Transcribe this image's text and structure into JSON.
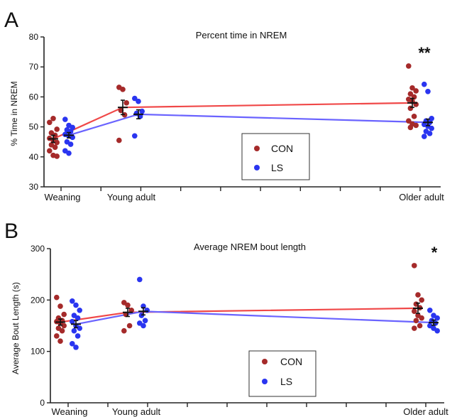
{
  "chart_data": [
    {
      "type": "scatter",
      "panel_label": "A",
      "title": "Percent time in NREM",
      "ylabel": "% Time in NREM",
      "xlabel": "",
      "categories": [
        "Weaning",
        "Young adult",
        "Older adult"
      ],
      "category_positions": [
        0,
        1,
        4.5
      ],
      "ylim": [
        30,
        80
      ],
      "yticks": [
        30,
        40,
        50,
        60,
        70,
        80
      ],
      "x_axis_ticks": [
        0,
        0.5,
        1,
        1.5,
        2,
        2.5,
        3,
        3.5,
        4,
        4.5
      ],
      "significance": "**",
      "significance_category": "Older adult",
      "legend": {
        "placement": "center-bottom",
        "entries": [
          "CON",
          "LS"
        ]
      },
      "series": [
        {
          "name": "CON",
          "color": "#a52a2a",
          "line_color": "#f04848",
          "mean": [
            46.0,
            56.5,
            58.0
          ],
          "sem": [
            1.2,
            2.4,
            1.5
          ],
          "points": [
            [
              51.5,
              52.8,
              49.2,
              48.0,
              47.2,
              46.2,
              45.5,
              44.8,
              44.0,
              43.2,
              42.0,
              40.5,
              40.2
            ],
            [
              63.2,
              62.5,
              58.0,
              55.5,
              54.0,
              45.5
            ],
            [
              70.3,
              63.0,
              62.0,
              61.0,
              60.0,
              59.2,
              58.5,
              57.5,
              56.2,
              53.5,
              52.0,
              51.0,
              50.5,
              49.8
            ]
          ]
        },
        {
          "name": "LS",
          "color": "#2a35f0",
          "line_color": "#6a63ff",
          "mean": [
            47.2,
            54.2,
            51.5
          ],
          "sem": [
            0.9,
            1.5,
            1.1
          ],
          "points": [
            [
              52.5,
              50.5,
              49.8,
              49.0,
              48.5,
              47.5,
              47.0,
              46.5,
              45.0,
              44.2,
              42.0,
              41.2
            ],
            [
              59.5,
              58.5,
              55.2,
              54.5,
              53.5,
              47.0
            ],
            [
              64.2,
              61.8,
              52.8,
              52.0,
              51.5,
              50.8,
              50.2,
              49.5,
              48.5,
              47.8,
              46.8
            ]
          ]
        }
      ]
    },
    {
      "type": "scatter",
      "panel_label": "B",
      "title": "Average NREM bout length",
      "ylabel": "Average Bout Length (s)",
      "xlabel": "",
      "categories": [
        "Weaning",
        "Young adult",
        "Older adult"
      ],
      "category_positions": [
        0,
        1,
        4.5
      ],
      "ylim": [
        0,
        300
      ],
      "yticks": [
        0,
        100,
        200,
        300
      ],
      "x_axis_ticks": [
        0,
        0.5,
        1,
        1.5,
        2,
        2.5,
        3,
        3.5,
        4,
        4.5
      ],
      "significance": "*",
      "significance_category": "Older adult",
      "legend": {
        "placement": "center-bottom",
        "entries": [
          "CON",
          "LS"
        ]
      },
      "series": [
        {
          "name": "CON",
          "color": "#a52a2a",
          "line_color": "#f04848",
          "mean": [
            157,
            176,
            184
          ],
          "sem": [
            6,
            8,
            10
          ],
          "points": [
            [
              205,
              188,
              172,
              165,
              160,
              158,
              155,
              150,
              145,
              140,
              130,
              120
            ],
            [
              195,
              190,
              180,
              172,
              150,
              140
            ],
            [
              267,
              210,
              200,
              192,
              185,
              178,
              170,
              165,
              160,
              150,
              145
            ]
          ]
        },
        {
          "name": "LS",
          "color": "#2a35f0",
          "line_color": "#6a63ff",
          "mean": [
            153,
            178,
            156
          ],
          "sem": [
            7,
            7,
            5
          ],
          "points": [
            [
              198,
              190,
              180,
              170,
              165,
              158,
              150,
              145,
              140,
              130,
              115,
              108
            ],
            [
              240,
              188,
              180,
              170,
              160,
              155,
              150
            ],
            [
              180,
              170,
              165,
              160,
              155,
              150,
              145,
              140
            ]
          ]
        }
      ]
    }
  ]
}
